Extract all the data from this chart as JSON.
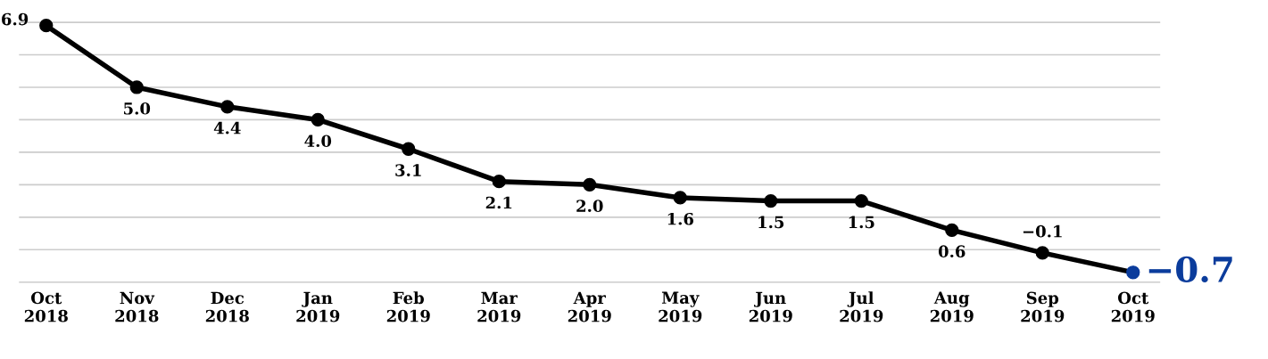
{
  "chart_data": {
    "type": "line",
    "categories": [
      "Oct\n2018",
      "Nov\n2018",
      "Dec\n2018",
      "Jan\n2019",
      "Feb\n2019",
      "Mar\n2019",
      "Apr\n2019",
      "May\n2019",
      "Jun\n2019",
      "Jul\n2019",
      "Aug\n2019",
      "Sep\n2019",
      "Oct\n2019"
    ],
    "series": [
      {
        "color": "#000000",
        "values": [
          6.9,
          5.0,
          4.4,
          4.0,
          3.1,
          2.1,
          2.0,
          1.6,
          1.5,
          1.5,
          0.6,
          -0.1,
          -0.7
        ],
        "colors": [
          "#000000",
          "#000000",
          "#000000",
          "#000000",
          "#000000",
          "#000000",
          "#000000",
          "#000000",
          "#000000",
          "#000000",
          "#000000",
          "#000000",
          "#0b3c9c"
        ],
        "value_labels": [
          "6.9",
          "5.0",
          "4.4",
          "4.0",
          "3.1",
          "2.1",
          "2.0",
          "1.6",
          "1.5",
          "1.5",
          "0.6",
          "−0.1",
          "−0.7"
        ]
      }
    ],
    "grid": "y",
    "marker": "circle",
    "line_style": "solid",
    "tick_labels": "x"
  }
}
